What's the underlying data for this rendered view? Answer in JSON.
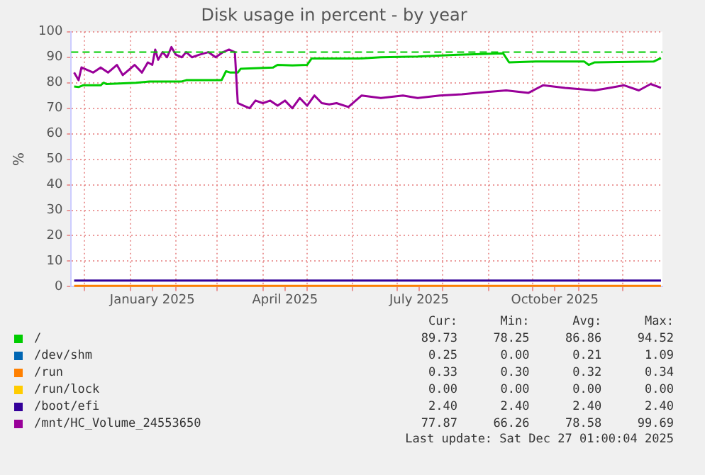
{
  "chart_data": {
    "type": "line",
    "title": "Disk usage in percent - by year",
    "ylabel": "%",
    "xlim": [
      "2024-11-22",
      "2025-12-28"
    ],
    "xticks": [
      {
        "value": "2024-12-01",
        "label": null
      },
      {
        "value": "2025-01-01",
        "label": null
      },
      {
        "value": "2025-01-16",
        "label": "January 2025"
      },
      {
        "value": "2025-02-01",
        "label": null
      },
      {
        "value": "2025-03-01",
        "label": null
      },
      {
        "value": "2025-04-01",
        "label": null
      },
      {
        "value": "2025-04-16",
        "label": "April 2025"
      },
      {
        "value": "2025-05-01",
        "label": null
      },
      {
        "value": "2025-06-01",
        "label": null
      },
      {
        "value": "2025-07-01",
        "label": null
      },
      {
        "value": "2025-07-16",
        "label": "July 2025"
      },
      {
        "value": "2025-08-01",
        "label": null
      },
      {
        "value": "2025-09-01",
        "label": null
      },
      {
        "value": "2025-10-01",
        "label": null
      },
      {
        "value": "2025-10-16",
        "label": "October 2025"
      },
      {
        "value": "2025-11-01",
        "label": null
      },
      {
        "value": "2025-12-01",
        "label": null
      }
    ],
    "ylim": [
      0,
      100
    ],
    "yticks": [
      0,
      10,
      20,
      30,
      40,
      50,
      60,
      70,
      80,
      90,
      100
    ],
    "grid": true,
    "legend": "bottom",
    "line_style": "solid",
    "series": [
      {
        "name": "/",
        "color": "#00cc00",
        "x": [
          "2024-11-24",
          "2024-11-27",
          "2024-11-30",
          "2024-12-12",
          "2024-12-14",
          "2024-12-16",
          "2025-01-05",
          "2025-01-14",
          "2025-02-05",
          "2025-02-08",
          "2025-03-04",
          "2025-03-07",
          "2025-03-10",
          "2025-03-15",
          "2025-03-17",
          "2025-04-08",
          "2025-04-11",
          "2025-04-21",
          "2025-05-01",
          "2025-05-04",
          "2025-06-05",
          "2025-06-20",
          "2025-07-15",
          "2025-08-11",
          "2025-09-11",
          "2025-09-15",
          "2025-10-03",
          "2025-11-05",
          "2025-11-08",
          "2025-11-12",
          "2025-12-22",
          "2025-12-27"
        ],
        "values": [
          78.5,
          78.3,
          79,
          79,
          80,
          79.5,
          80,
          80.5,
          80.5,
          81,
          81,
          84.5,
          84,
          84,
          85.5,
          86,
          87,
          86.8,
          87,
          89.5,
          89.5,
          90,
          90.3,
          91,
          91.5,
          88,
          88.3,
          88.3,
          87,
          88,
          88.3,
          89.7
        ]
      },
      {
        "name": "/dev/shm",
        "color": "#0066b3"
      },
      {
        "name": "/run",
        "color": "#ff8000",
        "x": [
          "2024-11-24",
          "2025-12-27"
        ],
        "values": [
          0.3,
          0.3
        ]
      },
      {
        "name": "/run/lock",
        "color": "#ffcc00"
      },
      {
        "name": "/boot/efi",
        "color": "#330099",
        "x": [
          "2024-11-24",
          "2025-12-27"
        ],
        "values": [
          2.4,
          2.4
        ]
      },
      {
        "name": "/mnt/HC_Volume_24553650",
        "color": "#990099",
        "x": [
          "2024-11-24",
          "2024-11-27",
          "2024-11-29",
          "2024-12-07",
          "2024-12-12",
          "2024-12-17",
          "2024-12-23",
          "2024-12-27",
          "2025-01-04",
          "2025-01-09",
          "2025-01-13",
          "2025-01-16",
          "2025-01-18",
          "2025-01-20",
          "2025-01-23",
          "2025-01-26",
          "2025-01-29",
          "2025-02-01",
          "2025-02-05",
          "2025-02-08",
          "2025-02-12",
          "2025-02-17",
          "2025-02-23",
          "2025-02-28",
          "2025-03-05",
          "2025-03-09",
          "2025-03-13",
          "2025-03-15",
          "2025-03-19",
          "2025-03-23",
          "2025-03-27",
          "2025-04-01",
          "2025-04-06",
          "2025-04-11",
          "2025-04-16",
          "2025-04-21",
          "2025-04-26",
          "2025-05-01",
          "2025-05-06",
          "2025-05-11",
          "2025-05-16",
          "2025-05-21",
          "2025-05-29",
          "2025-06-07",
          "2025-06-20",
          "2025-07-05",
          "2025-07-15",
          "2025-07-30",
          "2025-08-14",
          "2025-08-24",
          "2025-09-13",
          "2025-09-28",
          "2025-10-08",
          "2025-10-23",
          "2025-11-12",
          "2025-11-22",
          "2025-12-02",
          "2025-12-12",
          "2025-12-20",
          "2025-12-27"
        ],
        "values": [
          84,
          81,
          86,
          84,
          86,
          84,
          87,
          83,
          87,
          84,
          88,
          87,
          93,
          89,
          92,
          90,
          94,
          91,
          90,
          92,
          90,
          91,
          92,
          90,
          92,
          93,
          92,
          72,
          71,
          70,
          73,
          72,
          73,
          71,
          73,
          70,
          74,
          71,
          75,
          72,
          71.5,
          72,
          70.5,
          75,
          74,
          75,
          74,
          75,
          75.5,
          76,
          77,
          76,
          79,
          78,
          77,
          78,
          79,
          77,
          79.5,
          78
        ]
      }
    ],
    "ref_lines": [
      {
        "axis": "y",
        "value": 92,
        "color": "#00cc00",
        "line_style": "dashed"
      }
    ],
    "annotations": [
      "Cur:",
      "Min:",
      "Avg:",
      "Max:",
      "89.73",
      "78.25",
      "86.86",
      "94.52",
      "0.25",
      "0.00",
      "0.21",
      "1.09",
      "0.33",
      "0.30",
      "0.32",
      "0.34",
      "0.00",
      "0.00",
      "0.00",
      "0.00",
      "2.40",
      "2.40",
      "2.40",
      "2.40",
      "77.87",
      "66.26",
      "78.58",
      "99.69",
      "Last update: Sat Dec 27 01:00:04 2025"
    ]
  }
}
